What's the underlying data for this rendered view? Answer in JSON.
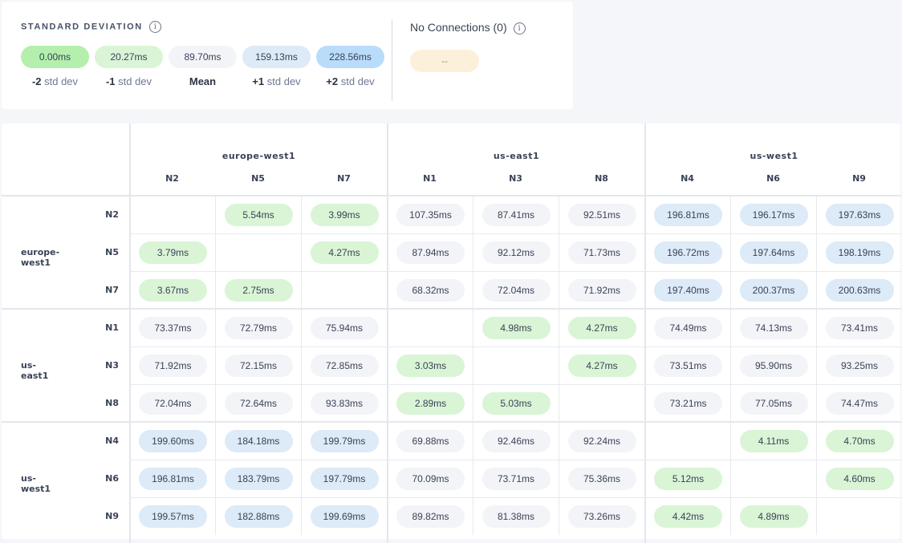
{
  "legend": {
    "title": "STANDARD DEVIATION",
    "info_icon": "info-icon",
    "items": [
      {
        "value": "0.00ms",
        "sign": "-2",
        "label": "std dev",
        "color": "#b4efad"
      },
      {
        "value": "20.27ms",
        "sign": "-1",
        "label": "std dev",
        "color": "#d9f5d6"
      },
      {
        "value": "89.70ms",
        "sign": "Mean",
        "label": "",
        "color": "#f3f4f8"
      },
      {
        "value": "159.13ms",
        "sign": "+1",
        "label": "std dev",
        "color": "#ddeaf7"
      },
      {
        "value": "228.56ms",
        "sign": "+2",
        "label": "std dev",
        "color": "#b9dcfb"
      }
    ]
  },
  "no_connections": {
    "title": "No Connections (0)",
    "value": "--",
    "color": "#fdf0da"
  },
  "matrix": {
    "groups": [
      {
        "name": "europe-west1",
        "nodes": [
          "N2",
          "N5",
          "N7"
        ]
      },
      {
        "name": "us-east1",
        "nodes": [
          "N1",
          "N3",
          "N8"
        ]
      },
      {
        "name": "us-west1",
        "nodes": [
          "N4",
          "N6",
          "N9"
        ]
      }
    ],
    "rows": [
      [
        "",
        "5.54ms",
        "3.99ms",
        "107.35ms",
        "87.41ms",
        "92.51ms",
        "196.81ms",
        "196.17ms",
        "197.63ms"
      ],
      [
        "3.79ms",
        "",
        "4.27ms",
        "87.94ms",
        "92.12ms",
        "71.73ms",
        "196.72ms",
        "197.64ms",
        "198.19ms"
      ],
      [
        "3.67ms",
        "2.75ms",
        "",
        "68.32ms",
        "72.04ms",
        "71.92ms",
        "197.40ms",
        "200.37ms",
        "200.63ms"
      ],
      [
        "73.37ms",
        "72.79ms",
        "75.94ms",
        "",
        "4.98ms",
        "4.27ms",
        "74.49ms",
        "74.13ms",
        "73.41ms"
      ],
      [
        "71.92ms",
        "72.15ms",
        "72.85ms",
        "3.03ms",
        "",
        "4.27ms",
        "73.51ms",
        "95.90ms",
        "93.25ms"
      ],
      [
        "72.04ms",
        "72.64ms",
        "93.83ms",
        "2.89ms",
        "5.03ms",
        "",
        "73.21ms",
        "77.05ms",
        "74.47ms"
      ],
      [
        "199.60ms",
        "184.18ms",
        "199.79ms",
        "69.88ms",
        "92.46ms",
        "92.24ms",
        "",
        "4.11ms",
        "4.70ms"
      ],
      [
        "196.81ms",
        "183.79ms",
        "197.79ms",
        "70.09ms",
        "73.71ms",
        "75.36ms",
        "5.12ms",
        "",
        "4.60ms"
      ],
      [
        "199.57ms",
        "182.88ms",
        "199.69ms",
        "89.82ms",
        "81.38ms",
        "73.26ms",
        "4.42ms",
        "4.89ms",
        ""
      ]
    ]
  }
}
